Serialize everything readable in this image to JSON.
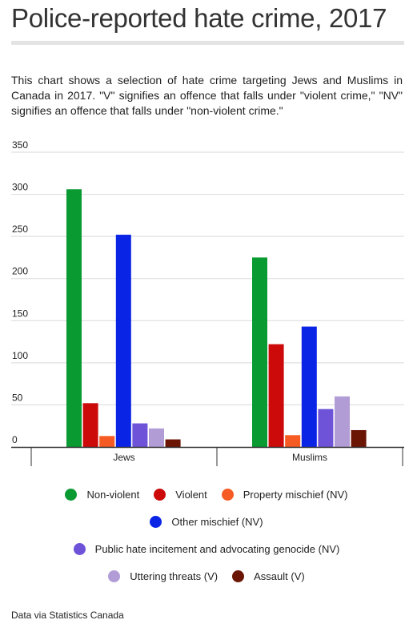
{
  "title": "Police-reported hate crime, 2017",
  "description": "This chart shows a selection of hate crime targeting Jews and Muslims in Canada in 2017. \"V\" signifies an offence that falls under \"violent crime,\" \"NV\" signifies an offence that falls under \"non-violent crime.\"",
  "source": "Data via Statistics Canada",
  "chart_data": {
    "type": "bar",
    "categories": [
      "Jews",
      "Muslims"
    ],
    "ylim": [
      0,
      350
    ],
    "yticks": [
      0,
      50,
      100,
      150,
      200,
      250,
      300,
      350
    ],
    "grid": true,
    "legend_position": "bottom",
    "series": [
      {
        "name": "Non-violent",
        "color": "#0a9a32",
        "values": [
          306,
          225
        ]
      },
      {
        "name": "Violent",
        "color": "#cc0a0a",
        "values": [
          52,
          122
        ]
      },
      {
        "name": "Property mischief (NV)",
        "color": "#f55b22",
        "values": [
          13,
          14
        ]
      },
      {
        "name": "Other mischief (NV)",
        "color": "#0a24e6",
        "values": [
          252,
          143
        ]
      },
      {
        "name": "Public hate incitement and advocating genocide (NV)",
        "color": "#6e52d8",
        "values": [
          28,
          45
        ]
      },
      {
        "name": "Uttering threats (V)",
        "color": "#b19cd6",
        "values": [
          22,
          60
        ]
      },
      {
        "name": "Assault (V)",
        "color": "#6b1505",
        "values": [
          9,
          20
        ]
      }
    ]
  }
}
